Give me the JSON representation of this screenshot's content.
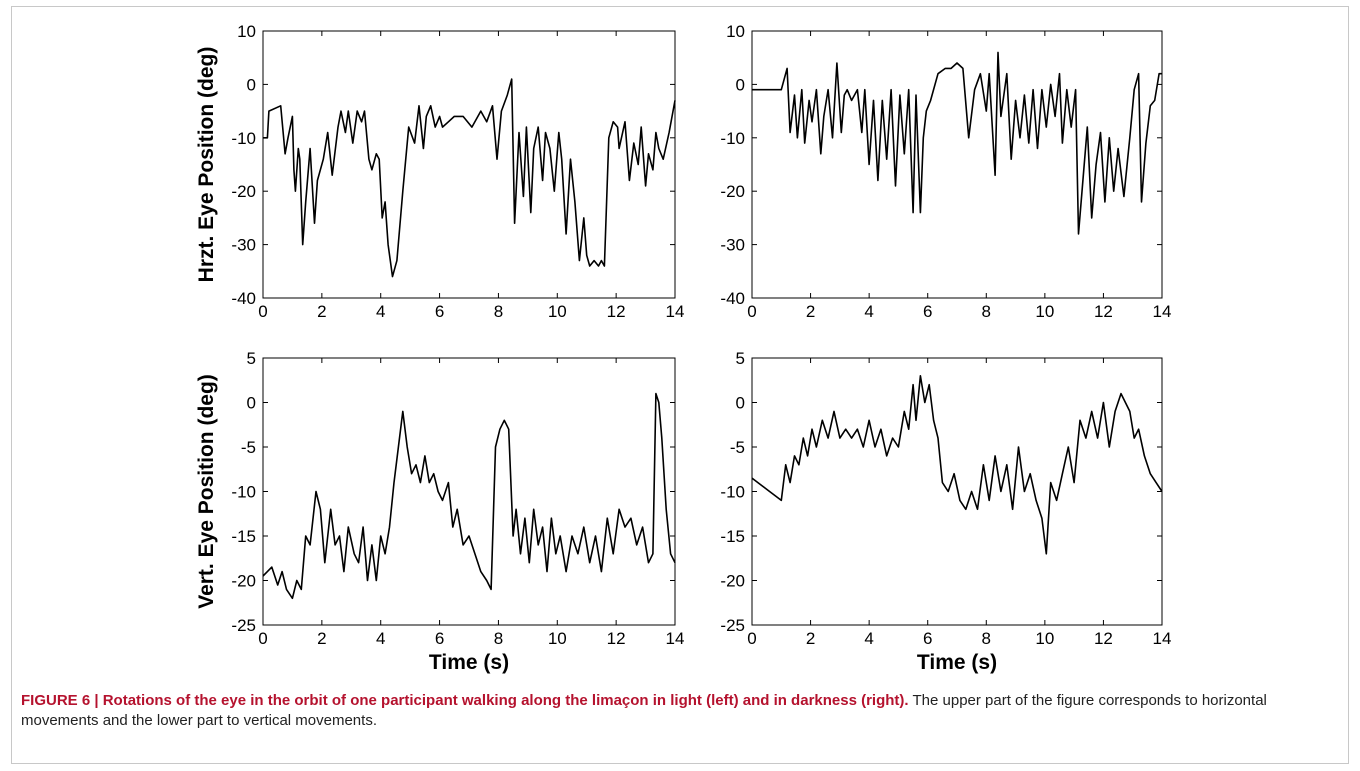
{
  "figure": {
    "caption_lead": "FIGURE 6 | Rotations of the eye in the orbit of one participant walking along the limaçon in light (left) and in darkness (right).",
    "caption_rest": " The upper part of the figure corresponds to horizontal movements and the lower part to vertical movements."
  },
  "chart_data": [
    {
      "type": "line",
      "panel": "top-left",
      "xlabel": "",
      "ylabel": "Hrzt. Eye Position (deg)",
      "xlim": [
        0,
        14
      ],
      "ylim": [
        -40,
        10
      ],
      "xticks": [
        0,
        2,
        4,
        6,
        8,
        10,
        12,
        14
      ],
      "yticks": [
        -40,
        -30,
        -20,
        -10,
        0,
        10
      ],
      "grid": false,
      "series": [
        {
          "x": [
            0,
            0.15,
            0.2,
            0.6,
            0.75,
            0.85,
            1.0,
            1.05,
            1.1,
            1.2,
            1.25,
            1.35,
            1.45,
            1.6,
            1.75,
            1.85,
            2.05,
            2.2,
            2.35,
            2.55,
            2.65,
            2.8,
            2.9,
            3.05,
            3.2,
            3.35,
            3.45,
            3.6,
            3.7,
            3.85,
            3.95,
            4.05,
            4.15,
            4.25,
            4.4,
            4.55,
            4.75,
            4.95,
            5.15,
            5.3,
            5.45,
            5.55,
            5.7,
            5.85,
            6.0,
            6.1,
            6.3,
            6.5,
            6.8,
            7.1,
            7.4,
            7.6,
            7.8,
            7.95,
            8.1,
            8.3,
            8.45,
            8.55,
            8.7,
            8.85,
            8.95,
            9.1,
            9.2,
            9.35,
            9.5,
            9.6,
            9.75,
            9.9,
            10.05,
            10.15,
            10.3,
            10.45,
            10.6,
            10.75,
            10.9,
            11.0,
            11.1,
            11.25,
            11.4,
            11.5,
            11.6,
            11.75,
            11.9,
            12.05,
            12.1,
            12.3,
            12.45,
            12.6,
            12.75,
            12.85,
            13.0,
            13.1,
            13.25,
            13.35,
            13.45,
            13.6,
            13.8,
            14.0
          ],
          "y": [
            -10,
            -10,
            -5,
            -4,
            -13,
            -10,
            -6,
            -16,
            -20,
            -12,
            -14,
            -30,
            -22,
            -12,
            -26,
            -18,
            -14,
            -9,
            -17,
            -8,
            -5,
            -9,
            -5,
            -11,
            -5,
            -7,
            -5,
            -14,
            -16,
            -13,
            -14,
            -25,
            -22,
            -30,
            -36,
            -33,
            -20,
            -8,
            -11,
            -4,
            -12,
            -6,
            -4,
            -8,
            -6,
            -8,
            -7,
            -6,
            -6,
            -8,
            -5,
            -7,
            -4,
            -14,
            -5,
            -2,
            1,
            -26,
            -9,
            -21,
            -8,
            -24,
            -12,
            -8,
            -18,
            -9,
            -12,
            -20,
            -9,
            -14,
            -28,
            -14,
            -22,
            -33,
            -25,
            -32,
            -34,
            -33,
            -34,
            -33,
            -34,
            -10,
            -7,
            -8,
            -12,
            -7,
            -18,
            -11,
            -15,
            -8,
            -19,
            -13,
            -16,
            -9,
            -12,
            -14,
            -9,
            -3
          ]
        }
      ]
    },
    {
      "type": "line",
      "panel": "top-right",
      "xlabel": "",
      "ylabel": "",
      "xlim": [
        0,
        14
      ],
      "ylim": [
        -40,
        10
      ],
      "xticks": [
        0,
        2,
        4,
        6,
        8,
        10,
        12,
        14
      ],
      "yticks": [
        -40,
        -30,
        -20,
        -10,
        0,
        10
      ],
      "grid": false,
      "series": [
        {
          "x": [
            0,
            0.2,
            0.5,
            0.8,
            1.0,
            1.2,
            1.3,
            1.45,
            1.55,
            1.7,
            1.8,
            1.95,
            2.05,
            2.2,
            2.35,
            2.45,
            2.6,
            2.75,
            2.9,
            3.05,
            3.15,
            3.25,
            3.4,
            3.6,
            3.75,
            3.85,
            4.0,
            4.15,
            4.3,
            4.45,
            4.6,
            4.75,
            4.9,
            5.05,
            5.2,
            5.35,
            5.5,
            5.6,
            5.75,
            5.85,
            5.95,
            6.1,
            6.35,
            6.6,
            6.8,
            7.0,
            7.2,
            7.4,
            7.6,
            7.8,
            8.0,
            8.1,
            8.3,
            8.4,
            8.5,
            8.7,
            8.85,
            9.0,
            9.15,
            9.3,
            9.45,
            9.6,
            9.75,
            9.9,
            10.05,
            10.2,
            10.35,
            10.5,
            10.6,
            10.75,
            10.9,
            11.05,
            11.15,
            11.3,
            11.45,
            11.6,
            11.75,
            11.9,
            12.05,
            12.2,
            12.35,
            12.5,
            12.7,
            12.9,
            13.05,
            13.2,
            13.3,
            13.45,
            13.6,
            13.75,
            13.9,
            14.0
          ],
          "y": [
            -1,
            -1,
            -1,
            -1,
            -1,
            3,
            -9,
            -2,
            -10,
            -1,
            -11,
            -3,
            -7,
            -1,
            -13,
            -6,
            -1,
            -10,
            4,
            -9,
            -2,
            -1,
            -3,
            -1,
            -9,
            -1,
            -15,
            -3,
            -18,
            -3,
            -14,
            -1,
            -19,
            -2,
            -13,
            -1,
            -24,
            -2,
            -24,
            -10,
            -5,
            -3,
            2,
            3,
            3,
            4,
            3,
            -10,
            -1,
            2,
            -5,
            2,
            -17,
            6,
            -6,
            2,
            -14,
            -3,
            -10,
            -2,
            -11,
            -1,
            -12,
            -1,
            -8,
            0,
            -6,
            2,
            -11,
            -1,
            -8,
            -1,
            -28,
            -18,
            -8,
            -25,
            -15,
            -9,
            -22,
            -10,
            -20,
            -12,
            -21,
            -10,
            -1,
            2,
            -22,
            -11,
            -4,
            -3,
            2,
            2
          ]
        }
      ]
    },
    {
      "type": "line",
      "panel": "bottom-left",
      "xlabel": "Time (s)",
      "ylabel": "Vert. Eye Position (deg)",
      "xlim": [
        0,
        14
      ],
      "ylim": [
        -25,
        5
      ],
      "xticks": [
        0,
        2,
        4,
        6,
        8,
        10,
        12,
        14
      ],
      "yticks": [
        -25,
        -20,
        -15,
        -10,
        -5,
        0,
        5
      ],
      "grid": false,
      "series": [
        {
          "x": [
            0,
            0.15,
            0.3,
            0.5,
            0.65,
            0.8,
            1.0,
            1.15,
            1.3,
            1.45,
            1.6,
            1.8,
            1.95,
            2.1,
            2.3,
            2.45,
            2.6,
            2.75,
            2.9,
            3.1,
            3.25,
            3.4,
            3.55,
            3.7,
            3.85,
            4.0,
            4.15,
            4.3,
            4.45,
            4.6,
            4.75,
            4.9,
            5.05,
            5.2,
            5.35,
            5.5,
            5.65,
            5.8,
            5.95,
            6.1,
            6.3,
            6.45,
            6.6,
            6.8,
            7.0,
            7.2,
            7.4,
            7.6,
            7.75,
            7.9,
            8.05,
            8.2,
            8.35,
            8.5,
            8.6,
            8.75,
            8.9,
            9.05,
            9.2,
            9.35,
            9.5,
            9.65,
            9.8,
            9.95,
            10.1,
            10.3,
            10.5,
            10.7,
            10.9,
            11.1,
            11.3,
            11.5,
            11.7,
            11.9,
            12.1,
            12.3,
            12.5,
            12.7,
            12.9,
            13.1,
            13.25,
            13.35,
            13.45,
            13.55,
            13.7,
            13.85,
            14.0
          ],
          "y": [
            -19.5,
            -19,
            -18.5,
            -20.5,
            -19,
            -21,
            -22,
            -20,
            -21,
            -15,
            -16,
            -10,
            -12,
            -18,
            -12,
            -16,
            -15,
            -19,
            -14,
            -17,
            -18,
            -14,
            -20,
            -16,
            -20,
            -15,
            -17,
            -14,
            -9,
            -5,
            -1,
            -5,
            -8,
            -7,
            -9,
            -6,
            -9,
            -8,
            -10,
            -11,
            -9,
            -14,
            -12,
            -16,
            -15,
            -17,
            -19,
            -20,
            -21,
            -5,
            -3,
            -2,
            -3,
            -15,
            -12,
            -17,
            -13,
            -18,
            -12,
            -16,
            -14,
            -19,
            -13,
            -17,
            -15,
            -19,
            -15,
            -17,
            -14,
            -18,
            -15,
            -19,
            -13,
            -17,
            -12,
            -14,
            -13,
            -16,
            -14,
            -18,
            -17,
            1,
            0,
            -4,
            -12,
            -17,
            -18
          ]
        }
      ]
    },
    {
      "type": "line",
      "panel": "bottom-right",
      "xlabel": "Time (s)",
      "ylabel": "",
      "xlim": [
        0,
        14
      ],
      "ylim": [
        -25,
        5
      ],
      "xticks": [
        0,
        2,
        4,
        6,
        8,
        10,
        12,
        14
      ],
      "yticks": [
        -25,
        -20,
        -15,
        -10,
        -5,
        0,
        5
      ],
      "grid": false,
      "series": [
        {
          "x": [
            0,
            0.2,
            0.4,
            0.6,
            0.8,
            1.0,
            1.15,
            1.3,
            1.45,
            1.6,
            1.75,
            1.9,
            2.05,
            2.2,
            2.4,
            2.6,
            2.8,
            3.0,
            3.2,
            3.4,
            3.6,
            3.8,
            4.0,
            4.2,
            4.4,
            4.6,
            4.8,
            5.0,
            5.2,
            5.35,
            5.5,
            5.6,
            5.75,
            5.9,
            6.05,
            6.2,
            6.35,
            6.5,
            6.7,
            6.9,
            7.1,
            7.3,
            7.5,
            7.7,
            7.9,
            8.1,
            8.3,
            8.5,
            8.7,
            8.9,
            9.1,
            9.3,
            9.5,
            9.7,
            9.9,
            10.05,
            10.2,
            10.4,
            10.6,
            10.8,
            11.0,
            11.2,
            11.4,
            11.6,
            11.8,
            12.0,
            12.2,
            12.4,
            12.6,
            12.75,
            12.9,
            13.05,
            13.2,
            13.4,
            13.6,
            13.8,
            14.0
          ],
          "y": [
            -8.5,
            -9,
            -9.5,
            -10,
            -10.5,
            -11,
            -7,
            -9,
            -6,
            -7,
            -4,
            -6,
            -3,
            -5,
            -2,
            -4,
            -1,
            -4,
            -3,
            -4,
            -3,
            -5,
            -2,
            -5,
            -3,
            -6,
            -4,
            -5,
            -1,
            -3,
            2,
            -2,
            3,
            0,
            2,
            -2,
            -4,
            -9,
            -10,
            -8,
            -11,
            -12,
            -10,
            -12,
            -7,
            -11,
            -6,
            -10,
            -7,
            -12,
            -5,
            -10,
            -8,
            -11,
            -13,
            -17,
            -9,
            -11,
            -8,
            -5,
            -9,
            -2,
            -4,
            -1,
            -4,
            0,
            -5,
            -1,
            1,
            0,
            -1,
            -4,
            -3,
            -6,
            -8,
            -9,
            -10
          ]
        }
      ]
    }
  ]
}
